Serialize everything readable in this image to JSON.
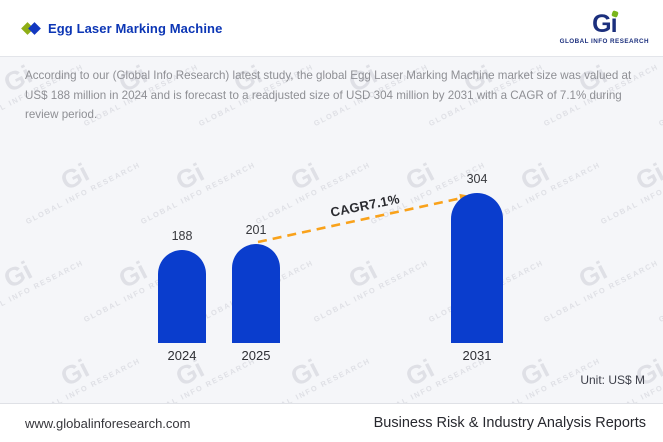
{
  "header": {
    "title": "Egg Laser Marking Machine",
    "logo_g": "G",
    "logo_i": "ı",
    "logo_subtext": "GLOBAL INFO RESEARCH"
  },
  "summary": "According to our (Global Info Research) latest study, the global Egg Laser Marking Machine market size was valued at US$ 188 million in 2024 and is forecast to a readjusted size of USD 304 million by 2031 with a CAGR of 7.1% during review period.",
  "chart_data": {
    "type": "bar",
    "categories": [
      "2024",
      "2025",
      "2031"
    ],
    "values": [
      188,
      201,
      304
    ],
    "unit": "US$ M",
    "unit_label": "Unit: US$ M",
    "annotation": "CAGR7.1%",
    "ylim": [
      0,
      320
    ],
    "grid": false,
    "legend": false,
    "bar_color": "#0a3dcd",
    "arrow_color": "#f9a21b"
  },
  "watermark": {
    "logo": "Gi",
    "text": "GLOBAL INFO RESEARCH"
  },
  "footer": {
    "website": "www.globalinforesearch.com",
    "tagline": "Business Risk & Industry Analysis Reports"
  },
  "colors": {
    "title_blue": "#0c36b5",
    "brand_green": "#8fae16",
    "logo_navy": "#1b2f7d",
    "bar_blue": "#0a3dcd",
    "arrow_orange": "#f9a21b",
    "panel_bg": "#f5f6f9"
  }
}
